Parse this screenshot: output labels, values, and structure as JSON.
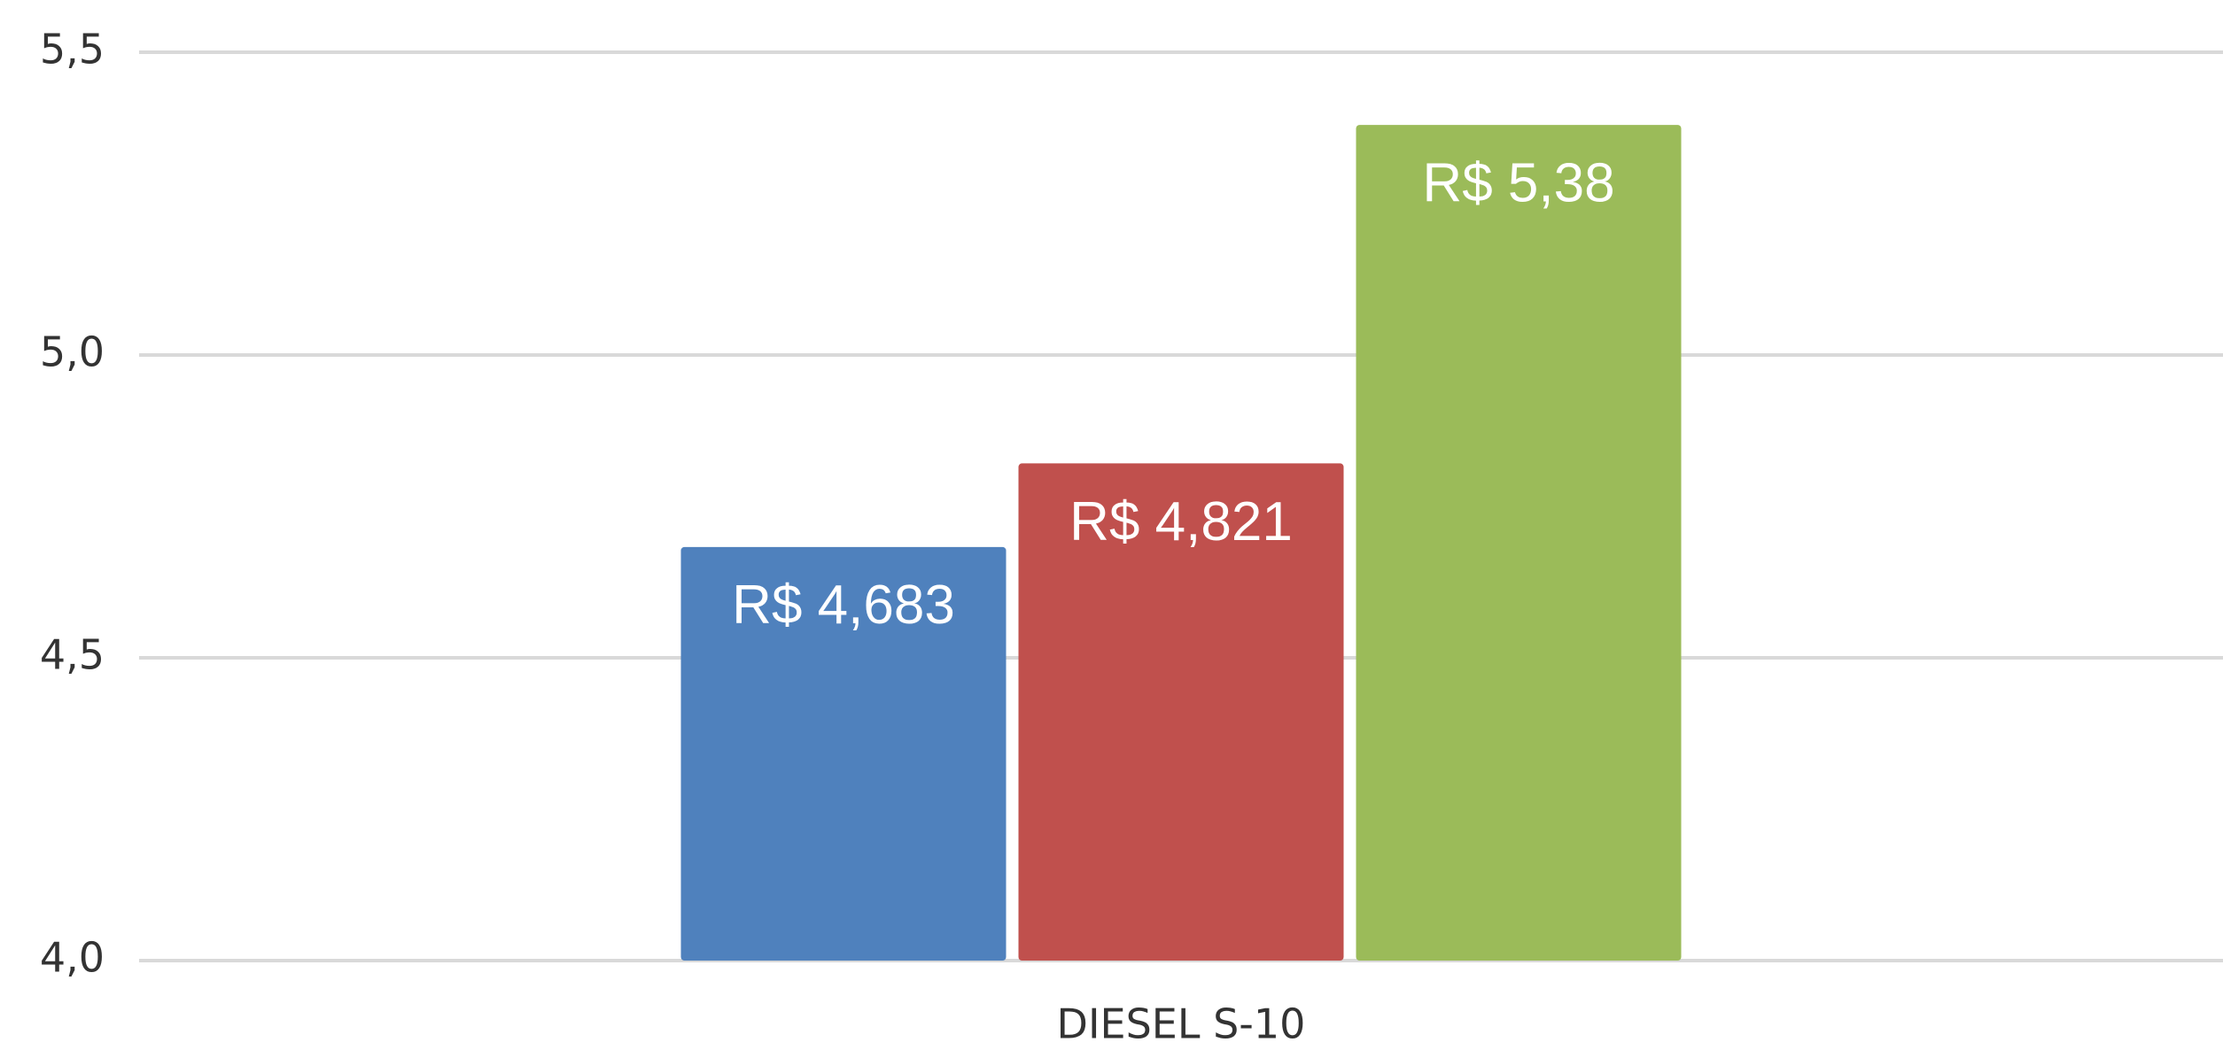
{
  "chart_data": {
    "type": "bar",
    "categories": [
      "DIESEL S-10"
    ],
    "series": [
      {
        "color": "#4f81bd",
        "values": [
          4.683
        ],
        "value_labels": [
          "R$ 4,683"
        ]
      },
      {
        "color": "#c0504d",
        "values": [
          4.821
        ],
        "value_labels": [
          "R$ 4,821"
        ]
      },
      {
        "color": "#9bbb59",
        "values": [
          5.38
        ],
        "value_labels": [
          "R$ 5,38"
        ]
      }
    ],
    "ylim": [
      4.0,
      5.5
    ],
    "yticks": [
      {
        "value": 4.0,
        "label": "4,0"
      },
      {
        "value": 4.5,
        "label": "4,5"
      },
      {
        "value": 5.0,
        "label": "5,0"
      },
      {
        "value": 5.5,
        "label": "5,5"
      }
    ],
    "grid": true
  }
}
